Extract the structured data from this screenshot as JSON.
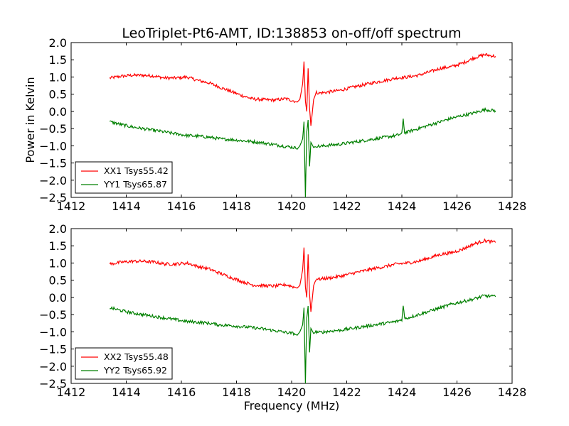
{
  "figure": {
    "title": "LeoTriplet-Pt6-AMT, ID:138853 on-off/off spectrum"
  },
  "chart_data": [
    {
      "type": "line",
      "title": "LeoTriplet-Pt6-AMT, ID:138853 on-off/off spectrum",
      "xlabel": "",
      "ylabel": "Power in Kelvin",
      "xlim": [
        1412,
        1428
      ],
      "ylim": [
        -2.5,
        2.0
      ],
      "xticks": [
        "1412",
        "1414",
        "1416",
        "1418",
        "1420",
        "1422",
        "1424",
        "1426",
        "1428"
      ],
      "yticks": [
        "2.0",
        "1.5",
        "1.0",
        "0.5",
        "0.0",
        "−0.5",
        "−1.0",
        "−1.5",
        "−2.0",
        "−2.5"
      ],
      "grid": false,
      "legend_position": "lower-left",
      "series": [
        {
          "name": "XX1 Tsys55.42",
          "color": "#ff0000",
          "x": [
            1413.4,
            1413.8,
            1414.2,
            1414.6,
            1415.0,
            1415.4,
            1415.8,
            1416.2,
            1416.6,
            1417.0,
            1417.4,
            1417.8,
            1418.2,
            1418.6,
            1419.0,
            1419.4,
            1419.8,
            1420.1,
            1420.2,
            1420.3,
            1420.4,
            1420.45,
            1420.5,
            1420.55,
            1420.6,
            1420.65,
            1420.7,
            1420.8,
            1420.9,
            1421.0,
            1421.4,
            1421.8,
            1422.2,
            1422.6,
            1423.0,
            1423.4,
            1423.8,
            1424.2,
            1424.6,
            1425.0,
            1425.4,
            1425.8,
            1426.2,
            1426.6,
            1427.0,
            1427.4
          ],
          "y": [
            0.97,
            1.02,
            1.05,
            1.05,
            1.03,
            0.97,
            0.97,
            1.0,
            0.9,
            0.83,
            0.7,
            0.58,
            0.46,
            0.36,
            0.34,
            0.33,
            0.37,
            0.3,
            0.27,
            0.35,
            0.8,
            1.45,
            0.3,
            0.0,
            1.25,
            0.1,
            -0.42,
            0.35,
            0.55,
            0.53,
            0.57,
            0.62,
            0.7,
            0.77,
            0.84,
            0.9,
            0.97,
            1.0,
            1.05,
            1.15,
            1.25,
            1.3,
            1.4,
            1.55,
            1.65,
            1.6
          ]
        },
        {
          "name": "YY1 Tsys65.87",
          "color": "#008000",
          "x": [
            1413.4,
            1413.8,
            1414.2,
            1414.6,
            1415.0,
            1415.4,
            1415.8,
            1416.2,
            1416.6,
            1417.0,
            1417.4,
            1417.8,
            1418.2,
            1418.6,
            1419.0,
            1419.4,
            1419.8,
            1420.1,
            1420.2,
            1420.3,
            1420.4,
            1420.45,
            1420.5,
            1420.55,
            1420.6,
            1420.65,
            1420.7,
            1420.8,
            1420.9,
            1421.0,
            1421.4,
            1421.8,
            1422.2,
            1422.6,
            1423.0,
            1423.4,
            1423.8,
            1424.0,
            1424.05,
            1424.1,
            1424.2,
            1424.6,
            1425.0,
            1425.4,
            1425.8,
            1426.2,
            1426.6,
            1427.0,
            1427.4
          ],
          "y": [
            -0.3,
            -0.38,
            -0.45,
            -0.5,
            -0.55,
            -0.6,
            -0.65,
            -0.7,
            -0.72,
            -0.75,
            -0.8,
            -0.82,
            -0.85,
            -0.88,
            -0.92,
            -0.97,
            -1.02,
            -1.05,
            -1.1,
            -1.0,
            -0.8,
            -0.3,
            -2.5,
            -0.6,
            -0.25,
            -1.6,
            -0.9,
            -1.05,
            -1.0,
            -1.02,
            -0.98,
            -0.95,
            -0.9,
            -0.85,
            -0.8,
            -0.75,
            -0.7,
            -0.65,
            -0.2,
            -0.62,
            -0.6,
            -0.5,
            -0.4,
            -0.3,
            -0.2,
            -0.12,
            -0.05,
            0.05,
            0.02
          ]
        }
      ]
    },
    {
      "type": "line",
      "title": "",
      "xlabel": "Frequency (MHz)",
      "ylabel": "",
      "xlim": [
        1412,
        1428
      ],
      "ylim": [
        -2.5,
        2.0
      ],
      "xticks": [
        "1412",
        "1414",
        "1416",
        "1418",
        "1420",
        "1422",
        "1424",
        "1426",
        "1428"
      ],
      "yticks": [
        "2.0",
        "1.5",
        "1.0",
        "0.5",
        "0.0",
        "−0.5",
        "−1.0",
        "−1.5",
        "−2.0",
        "−2.5"
      ],
      "grid": false,
      "legend_position": "lower-left",
      "series": [
        {
          "name": "XX2 Tsys55.48",
          "color": "#ff0000",
          "x": [
            1413.4,
            1413.8,
            1414.2,
            1414.6,
            1415.0,
            1415.4,
            1415.8,
            1416.2,
            1416.6,
            1417.0,
            1417.4,
            1417.8,
            1418.2,
            1418.6,
            1419.0,
            1419.4,
            1419.8,
            1420.1,
            1420.2,
            1420.3,
            1420.4,
            1420.45,
            1420.5,
            1420.55,
            1420.6,
            1420.65,
            1420.7,
            1420.8,
            1420.9,
            1421.0,
            1421.4,
            1421.8,
            1422.2,
            1422.6,
            1423.0,
            1423.4,
            1423.8,
            1424.2,
            1424.6,
            1425.0,
            1425.4,
            1425.8,
            1426.2,
            1426.6,
            1427.0,
            1427.4
          ],
          "y": [
            0.97,
            1.02,
            1.05,
            1.05,
            1.03,
            0.97,
            0.97,
            1.0,
            0.9,
            0.83,
            0.7,
            0.58,
            0.46,
            0.36,
            0.34,
            0.33,
            0.37,
            0.3,
            0.27,
            0.35,
            0.8,
            1.45,
            0.3,
            0.0,
            1.25,
            0.1,
            -0.42,
            0.35,
            0.55,
            0.53,
            0.57,
            0.62,
            0.7,
            0.77,
            0.84,
            0.9,
            0.97,
            1.0,
            1.05,
            1.15,
            1.25,
            1.3,
            1.4,
            1.55,
            1.65,
            1.6
          ]
        },
        {
          "name": "YY2 Tsys65.92",
          "color": "#008000",
          "x": [
            1413.4,
            1413.8,
            1414.2,
            1414.6,
            1415.0,
            1415.4,
            1415.8,
            1416.2,
            1416.6,
            1417.0,
            1417.4,
            1417.8,
            1418.2,
            1418.6,
            1419.0,
            1419.4,
            1419.8,
            1420.1,
            1420.2,
            1420.3,
            1420.4,
            1420.45,
            1420.5,
            1420.55,
            1420.6,
            1420.65,
            1420.7,
            1420.8,
            1420.9,
            1421.0,
            1421.4,
            1421.8,
            1422.2,
            1422.6,
            1423.0,
            1423.4,
            1423.8,
            1424.0,
            1424.05,
            1424.1,
            1424.2,
            1424.6,
            1425.0,
            1425.4,
            1425.8,
            1426.2,
            1426.6,
            1427.0,
            1427.4
          ],
          "y": [
            -0.3,
            -0.38,
            -0.45,
            -0.5,
            -0.55,
            -0.6,
            -0.65,
            -0.7,
            -0.72,
            -0.75,
            -0.8,
            -0.82,
            -0.85,
            -0.88,
            -0.92,
            -0.97,
            -1.02,
            -1.05,
            -1.1,
            -1.0,
            -0.8,
            -0.3,
            -2.5,
            -0.6,
            -0.25,
            -1.6,
            -0.9,
            -1.05,
            -1.0,
            -1.02,
            -0.98,
            -0.95,
            -0.9,
            -0.85,
            -0.8,
            -0.75,
            -0.7,
            -0.65,
            -0.2,
            -0.62,
            -0.6,
            -0.5,
            -0.4,
            -0.3,
            -0.2,
            -0.12,
            -0.05,
            0.05,
            0.02
          ]
        }
      ]
    }
  ]
}
